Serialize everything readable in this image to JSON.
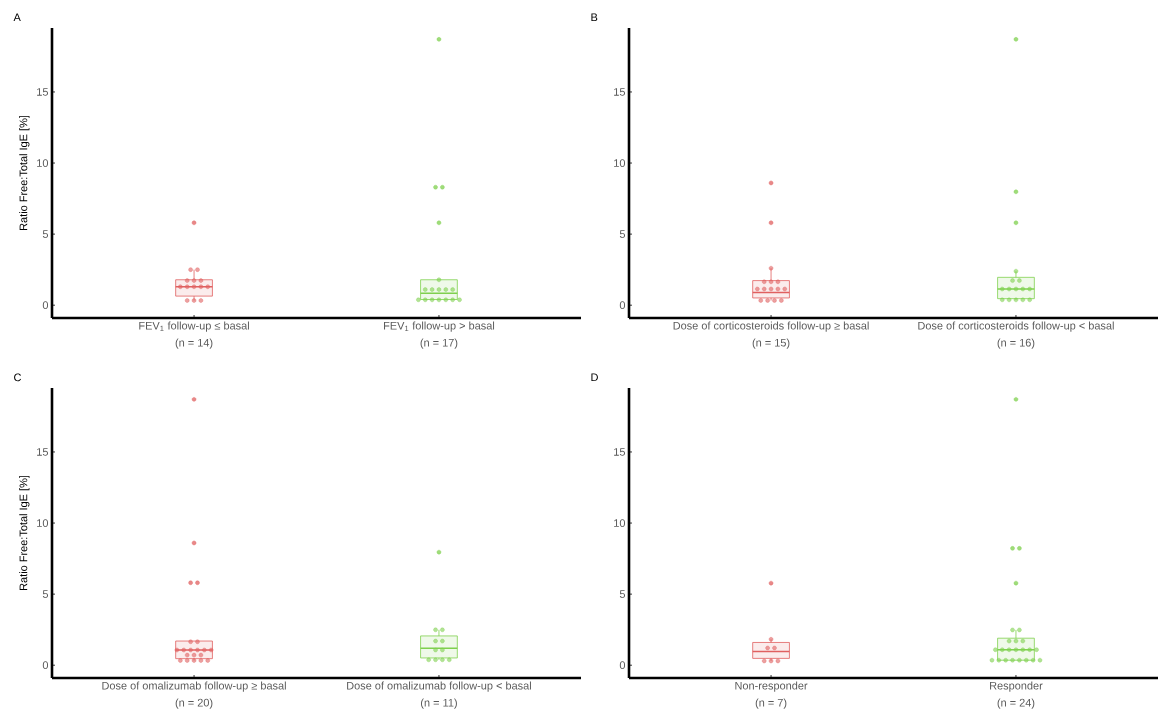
{
  "chart_data": [
    {
      "type": "box",
      "title": "A",
      "ylabel": "Ratio Free:Total IgE [%]",
      "categories": [
        "FEV$_{1}$ follow-up ≤ basal",
        "FEV$_{1}$ follow-up > basal"
      ],
      "annotations": [
        "(n = 14)",
        "(n = 17)"
      ],
      "ylim": [
        -0.9,
        19.5
      ],
      "yticks": [
        0,
        5,
        10,
        15
      ],
      "series": [
        {
          "colors": [
            "#e06060",
            "#7fd04e"
          ],
          "boxes": [
            {
              "low": 0.33,
              "q1": 0.64,
              "median": 1.3,
              "q3": 1.79,
              "high": 2.5,
              "outliers": [
                5.8
              ]
            },
            {
              "low": 0.38,
              "q1": 0.4,
              "median": 0.84,
              "q3": 1.79,
              "high": 1.79,
              "outliers": [
                5.8,
                8.3,
                8.3,
                18.7
              ]
            }
          ]
        },
        {
          "type": "scatter",
          "color": "#e06060",
          "x": [
            "FEV$_{1}$ follow-up ≤ basal",
            "FEV$_{1}$ follow-up ≤ basal",
            "FEV$_{1}$ follow-up ≤ basal",
            "FEV$_{1}$ follow-up ≤ basal",
            "FEV$_{1}$ follow-up ≤ basal",
            "FEV$_{1}$ follow-up ≤ basal",
            "FEV$_{1}$ follow-up ≤ basal",
            "FEV$_{1}$ follow-up ≤ basal",
            "FEV$_{1}$ follow-up ≤ basal",
            "FEV$_{1}$ follow-up ≤ basal",
            "FEV$_{1}$ follow-up ≤ basal",
            "FEV$_{1}$ follow-up ≤ basal",
            "FEV$_{1}$ follow-up ≤ basal"
          ],
          "values": [
            0.33,
            0.33,
            0.33,
            1.3,
            1.3,
            1.3,
            1.3,
            1.3,
            1.73,
            1.73,
            1.73,
            2.5,
            2.5
          ]
        },
        {
          "type": "scatter",
          "color": "#7fd04e",
          "x": [
            "FEV$_{1}$ follow-up > basal",
            "FEV$_{1}$ follow-up > basal",
            "FEV$_{1}$ follow-up > basal",
            "FEV$_{1}$ follow-up > basal",
            "FEV$_{1}$ follow-up > basal",
            "FEV$_{1}$ follow-up > basal",
            "FEV$_{1}$ follow-up > basal",
            "FEV$_{1}$ follow-up > basal",
            "FEV$_{1}$ follow-up > basal",
            "FEV$_{1}$ follow-up > basal",
            "FEV$_{1}$ follow-up > basal",
            "FEV$_{1}$ follow-up > basal",
            "FEV$_{1}$ follow-up > basal"
          ],
          "values": [
            0.38,
            0.38,
            0.38,
            0.38,
            0.38,
            0.38,
            0.38,
            1.1,
            1.1,
            1.1,
            1.1,
            1.1,
            1.79
          ]
        }
      ]
    },
    {
      "type": "box",
      "title": "B",
      "categories": [
        "Dose of corticosteroids follow-up ≥ basal",
        "Dose of corticosteroids follow-up < basal"
      ],
      "annotations": [
        "(n = 15)",
        "(n = 16)"
      ],
      "ylim": [
        -0.9,
        19.5
      ],
      "yticks": [
        0,
        5,
        10,
        15
      ],
      "series": [
        {
          "colors": [
            "#e06060",
            "#7fd04e"
          ],
          "boxes": [
            {
              "low": 0.33,
              "q1": 0.51,
              "median": 0.89,
              "q3": 1.73,
              "high": 2.6,
              "outliers": [
                5.8,
                8.6
              ]
            },
            {
              "low": 0.38,
              "q1": 0.46,
              "median": 1.14,
              "q3": 1.96,
              "high": 2.39,
              "outliers": [
                5.8,
                7.98,
                18.7
              ]
            }
          ]
        },
        {
          "type": "scatter",
          "color": "#e06060",
          "x": [
            "Dose of corticosteroids follow-up ≥ basal",
            "Dose of corticosteroids follow-up ≥ basal",
            "Dose of corticosteroids follow-up ≥ basal",
            "Dose of corticosteroids follow-up ≥ basal",
            "Dose of corticosteroids follow-up ≥ basal",
            "Dose of corticosteroids follow-up ≥ basal",
            "Dose of corticosteroids follow-up ≥ basal",
            "Dose of corticosteroids follow-up ≥ basal",
            "Dose of corticosteroids follow-up ≥ basal",
            "Dose of corticosteroids follow-up ≥ basal",
            "Dose of corticosteroids follow-up ≥ basal",
            "Dose of corticosteroids follow-up ≥ basal",
            "Dose of corticosteroids follow-up ≥ basal"
          ],
          "values": [
            0.33,
            0.33,
            0.33,
            0.33,
            1.14,
            1.14,
            1.14,
            1.14,
            1.14,
            1.65,
            1.65,
            1.65,
            2.6
          ]
        },
        {
          "type": "scatter",
          "color": "#7fd04e",
          "x": [
            "Dose of corticosteroids follow-up < basal",
            "Dose of corticosteroids follow-up < basal",
            "Dose of corticosteroids follow-up < basal",
            "Dose of corticosteroids follow-up < basal",
            "Dose of corticosteroids follow-up < basal",
            "Dose of corticosteroids follow-up < basal",
            "Dose of corticosteroids follow-up < basal",
            "Dose of corticosteroids follow-up < basal",
            "Dose of corticosteroids follow-up < basal",
            "Dose of corticosteroids follow-up < basal",
            "Dose of corticosteroids follow-up < basal",
            "Dose of corticosteroids follow-up < basal",
            "Dose of corticosteroids follow-up < basal"
          ],
          "values": [
            0.38,
            0.38,
            0.38,
            0.38,
            0.38,
            1.14,
            1.14,
            1.14,
            1.14,
            1.14,
            1.73,
            1.73,
            2.39
          ]
        }
      ]
    },
    {
      "type": "box",
      "title": "C",
      "ylabel": "Ratio Free:Total IgE [%]",
      "categories": [
        "Dose of omalizumab follow-up ≥ basal",
        "Dose of omalizumab follow-up < basal"
      ],
      "annotations": [
        "(n = 20)",
        "(n = 11)"
      ],
      "ylim": [
        -0.9,
        19.5
      ],
      "yticks": [
        0,
        5,
        10,
        15
      ],
      "series": [
        {
          "colors": [
            "#e06060",
            "#7fd04e"
          ],
          "boxes": [
            {
              "low": 0.33,
              "q1": 0.46,
              "median": 1.07,
              "q3": 1.7,
              "high": 1.7,
              "outliers": [
                5.8,
                5.8,
                8.6,
                18.7
              ]
            },
            {
              "low": 0.38,
              "q1": 0.51,
              "median": 1.19,
              "q3": 2.06,
              "high": 2.49,
              "outliers": [
                7.95
              ]
            }
          ]
        },
        {
          "type": "scatter",
          "color": "#e06060",
          "x": [
            "Dose of omalizumab follow-up ≥ basal",
            "Dose of omalizumab follow-up ≥ basal",
            "Dose of omalizumab follow-up ≥ basal",
            "Dose of omalizumab follow-up ≥ basal",
            "Dose of omalizumab follow-up ≥ basal",
            "Dose of omalizumab follow-up ≥ basal",
            "Dose of omalizumab follow-up ≥ basal",
            "Dose of omalizumab follow-up ≥ basal",
            "Dose of omalizumab follow-up ≥ basal",
            "Dose of omalizumab follow-up ≥ basal",
            "Dose of omalizumab follow-up ≥ basal",
            "Dose of omalizumab follow-up ≥ basal",
            "Dose of omalizumab follow-up ≥ basal",
            "Dose of omalizumab follow-up ≥ basal",
            "Dose of omalizumab follow-up ≥ basal",
            "Dose of omalizumab follow-up ≥ basal"
          ],
          "values": [
            0.33,
            0.33,
            0.33,
            0.33,
            0.33,
            0.71,
            0.71,
            0.71,
            1.07,
            1.07,
            1.07,
            1.07,
            1.07,
            1.07,
            1.65,
            1.65
          ]
        },
        {
          "type": "scatter",
          "color": "#7fd04e",
          "x": [
            "Dose of omalizumab follow-up < basal",
            "Dose of omalizumab follow-up < basal",
            "Dose of omalizumab follow-up < basal",
            "Dose of omalizumab follow-up < basal",
            "Dose of omalizumab follow-up < basal",
            "Dose of omalizumab follow-up < basal",
            "Dose of omalizumab follow-up < basal",
            "Dose of omalizumab follow-up < basal",
            "Dose of omalizumab follow-up < basal",
            "Dose of omalizumab follow-up < basal"
          ],
          "values": [
            0.38,
            0.38,
            0.38,
            0.38,
            1.07,
            1.07,
            1.7,
            1.7,
            2.49,
            2.49
          ]
        }
      ]
    },
    {
      "type": "box",
      "title": "D",
      "categories": [
        "Non-responder",
        "Responder"
      ],
      "annotations": [
        "(n = 7)",
        "(n = 24)"
      ],
      "ylim": [
        -0.9,
        19.5
      ],
      "yticks": [
        0,
        5,
        10,
        15
      ],
      "series": [
        {
          "colors": [
            "#e06060",
            "#7fd04e"
          ],
          "boxes": [
            {
              "low": 0.3,
              "q1": 0.48,
              "median": 0.96,
              "q3": 1.6,
              "high": 1.82,
              "outliers": [
                5.77
              ]
            },
            {
              "low": 0.35,
              "q1": 0.35,
              "median": 1.09,
              "q3": 1.9,
              "high": 2.48,
              "outliers": [
                5.77,
                8.22,
                8.22,
                18.7
              ]
            }
          ]
        },
        {
          "type": "scatter",
          "color": "#e06060",
          "x": [
            "Non-responder",
            "Non-responder",
            "Non-responder",
            "Non-responder",
            "Non-responder",
            "Non-responder"
          ],
          "values": [
            0.3,
            0.3,
            0.3,
            1.21,
            1.21,
            1.82
          ]
        },
        {
          "type": "scatter",
          "color": "#7fd04e",
          "x": [
            "Responder",
            "Responder",
            "Responder",
            "Responder",
            "Responder",
            "Responder",
            "Responder",
            "Responder",
            "Responder",
            "Responder",
            "Responder",
            "Responder",
            "Responder",
            "Responder",
            "Responder",
            "Responder",
            "Responder",
            "Responder",
            "Responder",
            "Responder"
          ],
          "values": [
            0.35,
            0.35,
            0.35,
            0.35,
            0.35,
            0.35,
            0.35,
            0.35,
            1.09,
            1.09,
            1.09,
            1.09,
            1.09,
            1.09,
            1.09,
            1.7,
            1.7,
            1.7,
            2.48,
            2.48
          ]
        }
      ]
    }
  ]
}
